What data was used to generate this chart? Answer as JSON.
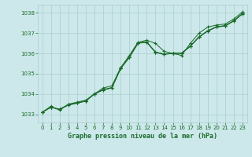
{
  "title": "Graphe pression niveau de la mer (hPa)",
  "bg_color": "#cce8ea",
  "grid_color": "#aacccc",
  "line_color": "#1a6b2a",
  "marker_color": "#1a6b2a",
  "xlim": [
    -0.5,
    23.5
  ],
  "ylim": [
    1032.6,
    1038.4
  ],
  "yticks": [
    1033,
    1034,
    1035,
    1036,
    1037,
    1038
  ],
  "xticks": [
    0,
    1,
    2,
    3,
    4,
    5,
    6,
    7,
    8,
    9,
    10,
    11,
    12,
    13,
    14,
    15,
    16,
    17,
    18,
    19,
    20,
    21,
    22,
    23
  ],
  "series": [
    [
      1033.1,
      1033.4,
      1033.2,
      1033.5,
      1033.6,
      1033.7,
      1034.0,
      1034.3,
      1034.4,
      1035.3,
      1035.9,
      1036.55,
      1036.65,
      1036.5,
      1036.1,
      1036.0,
      1035.9,
      1036.5,
      1037.0,
      1037.3,
      1037.4,
      1037.45,
      1037.7,
      1038.05
    ],
    [
      1033.1,
      1033.35,
      1033.25,
      1033.45,
      1033.55,
      1033.65,
      1034.0,
      1034.2,
      1034.3,
      1035.25,
      1035.8,
      1036.5,
      1036.55,
      1036.05,
      1035.95,
      1036.0,
      1036.0,
      1036.35,
      1036.8,
      1037.1,
      1037.3,
      1037.35,
      1037.6,
      1037.95
    ],
    [
      1033.1,
      1033.35,
      1033.25,
      1033.48,
      1033.56,
      1033.66,
      1034.02,
      1034.22,
      1034.32,
      1035.27,
      1035.82,
      1036.52,
      1036.57,
      1036.07,
      1035.97,
      1036.02,
      1036.02,
      1036.37,
      1036.82,
      1037.12,
      1037.32,
      1037.37,
      1037.62,
      1037.97
    ],
    [
      1033.1,
      1033.35,
      1033.25,
      1033.47,
      1033.56,
      1033.66,
      1034.01,
      1034.21,
      1034.31,
      1035.26,
      1035.81,
      1036.51,
      1036.56,
      1036.06,
      1035.96,
      1036.01,
      1036.01,
      1036.36,
      1036.81,
      1037.11,
      1037.31,
      1037.36,
      1037.61,
      1037.96
    ]
  ]
}
